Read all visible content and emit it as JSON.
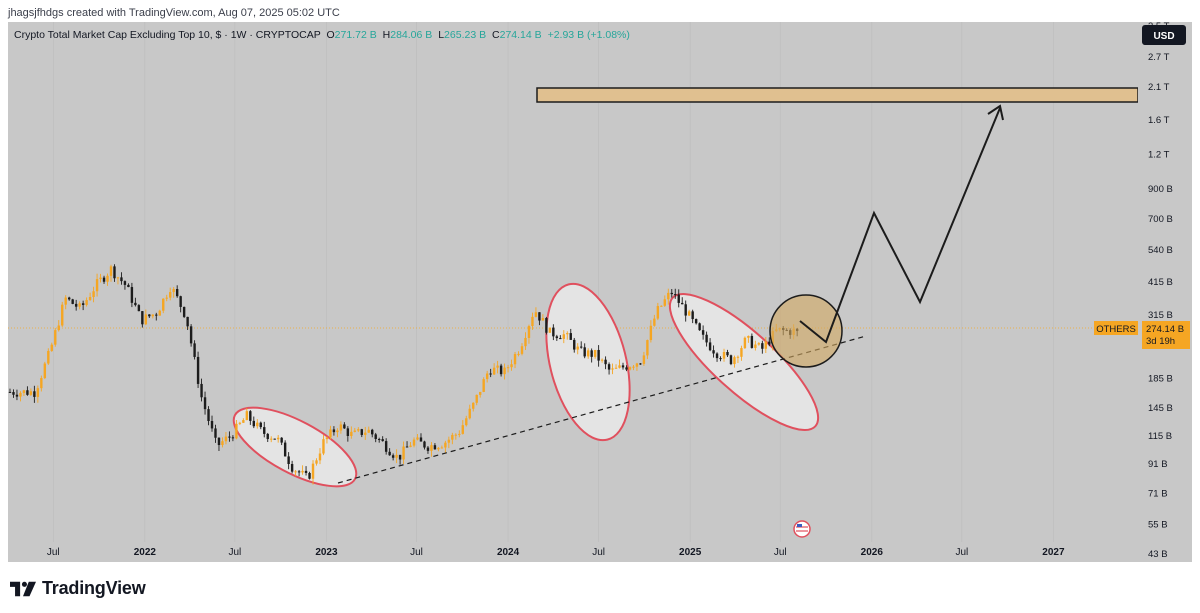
{
  "header": {
    "created_text": "jhagsjfhdgs created with TradingView.com, Aug 07, 2025 05:02 UTC"
  },
  "legend": {
    "title": "Crypto Total Market Cap Excluding Top 10, $ · 1W · CRYPTOCAP",
    "o_label": "O",
    "o_value": "271.72 B",
    "h_label": "H",
    "h_value": "284.06 B",
    "l_label": "L",
    "l_value": "265.23 B",
    "c_label": "C",
    "c_value": "274.14 B",
    "change": "+2.93 B (+1.08%)"
  },
  "currency_badge": "USD",
  "price_tag": {
    "symbol": "OTHERS",
    "price": "274.14 B",
    "countdown": "3d 19h"
  },
  "footer": {
    "brand": "TradingView"
  },
  "colors": {
    "background": "#c8c8c8",
    "candle_up": "#f5a623",
    "candle_down": "#1c1c1c",
    "ellipse_stroke": "#e0505e",
    "ellipse_fill": "#e4e4e4",
    "circle_stroke": "#1c1c1c",
    "circle_fill": "#d2a860",
    "target_fill": "#e0c090",
    "price_tag_bg": "#f5a623"
  },
  "chart_data": {
    "type": "candlestick",
    "title": "Crypto Total Market Cap Excluding Top 10, $ · 1W · CRYPTOCAP",
    "scale": "log",
    "ylim": [
      "40 B",
      "3.6 T"
    ],
    "y_ticks": [
      "3.5 T",
      "2.7 T",
      "2.1 T",
      "1.6 T",
      "1.2 T",
      "900 B",
      "700 B",
      "540 B",
      "415 B",
      "315 B",
      "243 B",
      "185 B",
      "145 B",
      "115 B",
      "91 B",
      "71 B",
      "55 B",
      "43 B"
    ],
    "x_ticks": [
      "Jul",
      "2022",
      "Jul",
      "2023",
      "Jul",
      "2024",
      "Jul",
      "2025",
      "Jul",
      "2026",
      "Jul",
      "2027"
    ],
    "last_price": "274.14 B",
    "series": [
      {
        "name": "OTHERS",
        "points": [
          {
            "d": "2021-06",
            "c": 165
          },
          {
            "d": "2021-07",
            "c": 230
          },
          {
            "d": "2021-08",
            "c": 360
          },
          {
            "d": "2021-09",
            "c": 330
          },
          {
            "d": "2021-10",
            "c": 400
          },
          {
            "d": "2021-11",
            "c": 460
          },
          {
            "d": "2021-12",
            "c": 400
          },
          {
            "d": "2022-01",
            "c": 300
          },
          {
            "d": "2022-02",
            "c": 320
          },
          {
            "d": "2022-03",
            "c": 400
          },
          {
            "d": "2022-04",
            "c": 310
          },
          {
            "d": "2022-05",
            "c": 160
          },
          {
            "d": "2022-06",
            "c": 105
          },
          {
            "d": "2022-07",
            "c": 115
          },
          {
            "d": "2022-08",
            "c": 135
          },
          {
            "d": "2022-09",
            "c": 118
          },
          {
            "d": "2022-10",
            "c": 112
          },
          {
            "d": "2022-11",
            "c": 88
          },
          {
            "d": "2022-12",
            "c": 80
          },
          {
            "d": "2023-01",
            "c": 108
          },
          {
            "d": "2023-02",
            "c": 125
          },
          {
            "d": "2023-03",
            "c": 115
          },
          {
            "d": "2023-04",
            "c": 120
          },
          {
            "d": "2023-05",
            "c": 108
          },
          {
            "d": "2023-06",
            "c": 95
          },
          {
            "d": "2023-07",
            "c": 110
          },
          {
            "d": "2023-08",
            "c": 105
          },
          {
            "d": "2023-09",
            "c": 108
          },
          {
            "d": "2023-10",
            "c": 118
          },
          {
            "d": "2023-11",
            "c": 150
          },
          {
            "d": "2023-12",
            "c": 200
          },
          {
            "d": "2024-01",
            "c": 195
          },
          {
            "d": "2024-02",
            "c": 240
          },
          {
            "d": "2024-03",
            "c": 330
          },
          {
            "d": "2024-04",
            "c": 270
          },
          {
            "d": "2024-05",
            "c": 265
          },
          {
            "d": "2024-06",
            "c": 230
          },
          {
            "d": "2024-07",
            "c": 225
          },
          {
            "d": "2024-08",
            "c": 195
          },
          {
            "d": "2024-09",
            "c": 205
          },
          {
            "d": "2024-10",
            "c": 215
          },
          {
            "d": "2024-11",
            "c": 320
          },
          {
            "d": "2024-12",
            "c": 380
          },
          {
            "d": "2025-01",
            "c": 320
          },
          {
            "d": "2025-02",
            "c": 260
          },
          {
            "d": "2025-03",
            "c": 230
          },
          {
            "d": "2025-04",
            "c": 215
          },
          {
            "d": "2025-05",
            "c": 255
          },
          {
            "d": "2025-06",
            "c": 235
          },
          {
            "d": "2025-07",
            "c": 275
          },
          {
            "d": "2025-08",
            "c": 274.14
          }
        ]
      }
    ],
    "annotations": [
      "target zone ~2.2 T–2.7 T",
      "projected zig-zag path to target",
      "ascending dashed trendline",
      "three highlighted ellipses",
      "highlighted circle on current price"
    ]
  }
}
